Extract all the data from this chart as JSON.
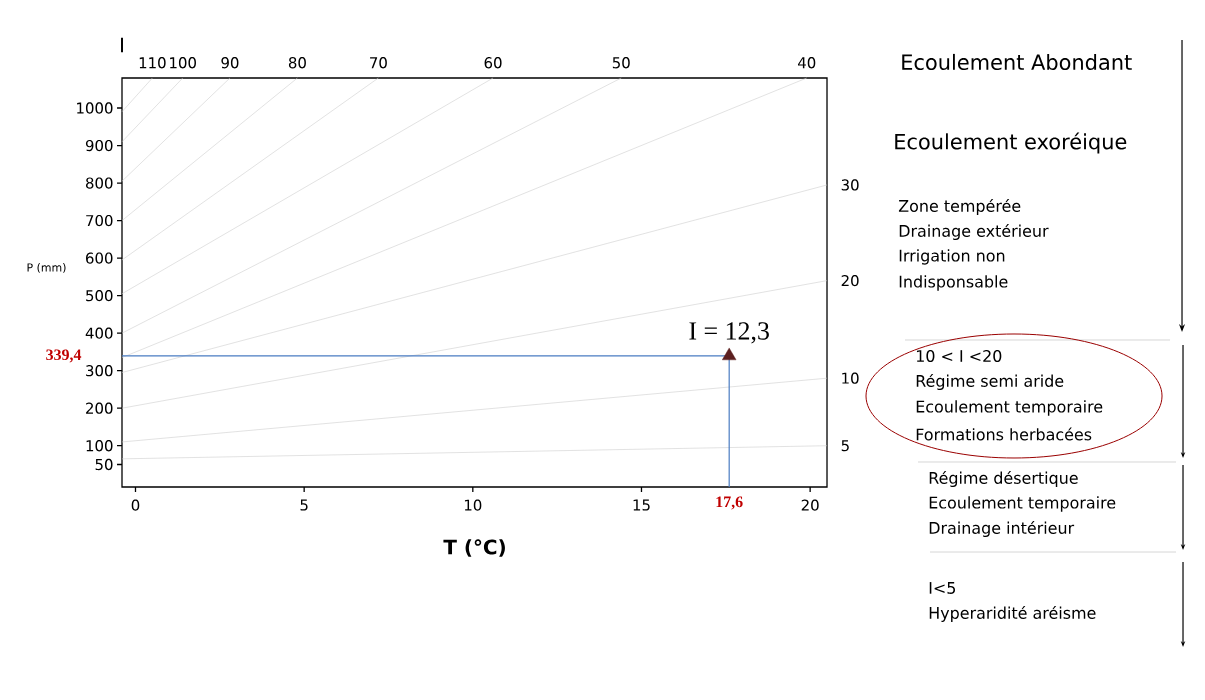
{
  "chart_data": {
    "type": "line",
    "legend_title": "I",
    "xlabel": "T (°C)",
    "ylabel": "P (mm)",
    "xlim": [
      -0.4,
      20.5
    ],
    "ylim": [
      -10,
      1080
    ],
    "xticks": [
      0,
      5,
      10,
      15,
      20
    ],
    "yticks": [
      50,
      100,
      200,
      300,
      400,
      500,
      600,
      700,
      800,
      900,
      1000
    ],
    "marker": "none",
    "series": [
      {
        "name": "110",
        "color": "#cfcfcf",
        "x": [
          -0.4,
          0.5
        ],
        "values": [
          990,
          1080
        ]
      },
      {
        "name": "100",
        "color": "#cfcfcf",
        "x": [
          -0.4,
          1.4
        ],
        "values": [
          910,
          1080
        ]
      },
      {
        "name": "90",
        "color": "#cfcfcf",
        "x": [
          -0.4,
          2.8
        ],
        "values": [
          805,
          1080
        ]
      },
      {
        "name": "80",
        "color": "#cfcfcf",
        "x": [
          -0.4,
          4.8
        ],
        "values": [
          700,
          1080
        ]
      },
      {
        "name": "70",
        "color": "#cfcfcf",
        "x": [
          -0.4,
          7.2
        ],
        "values": [
          595,
          1080
        ]
      },
      {
        "name": "60",
        "color": "#cfcfcf",
        "x": [
          -0.4,
          10.6
        ],
        "values": [
          505,
          1080
        ]
      },
      {
        "name": "50",
        "color": "#cfcfcf",
        "x": [
          -0.4,
          14.4
        ],
        "values": [
          400,
          1080
        ]
      },
      {
        "name": "40",
        "color": "#cfcfcf",
        "x": [
          -0.4,
          19.9
        ],
        "values": [
          335,
          1080
        ]
      },
      {
        "name": "30",
        "color": "#cfcfcf",
        "x": [
          -0.4,
          20.5
        ],
        "values": [
          295,
          795
        ]
      },
      {
        "name": "20",
        "color": "#cfcfcf",
        "x": [
          -0.4,
          20.5
        ],
        "values": [
          200,
          540
        ]
      },
      {
        "name": "10",
        "color": "#cfcfcf",
        "x": [
          -0.4,
          20.5
        ],
        "values": [
          110,
          280
        ]
      },
      {
        "name": "5",
        "color": "#cfcfcf",
        "x": [
          -0.4,
          20.5
        ],
        "values": [
          65,
          100
        ]
      },
      {
        "color": "#4a7cc2",
        "x": [
          -0.4,
          17.6,
          17.6
        ],
        "values": [
          339.4,
          339.4,
          -10
        ]
      },
      {
        "type": "scatter",
        "marker": "triangle",
        "color": "#5c1f1f",
        "x": [
          17.6
        ],
        "values": [
          339.4
        ]
      }
    ],
    "annotations": [
      "339,4",
      "17,6",
      {
        "text": "I = 12,3",
        "x": 17.6,
        "y": 339.4
      },
      "Ecoulement Abondant",
      "Ecoulement exoréique",
      "Zone tempérée",
      "Drainage extérieur",
      "Irrigation non",
      "Indisponsable",
      "10 < I <20",
      "Régime semi aride",
      "Ecoulement temporaire",
      "Formations herbacées",
      "Régime désertique",
      "Ecoulement temporaire",
      "Drainage intérieur",
      "I<5",
      "Hyperaridité aréisme"
    ]
  }
}
